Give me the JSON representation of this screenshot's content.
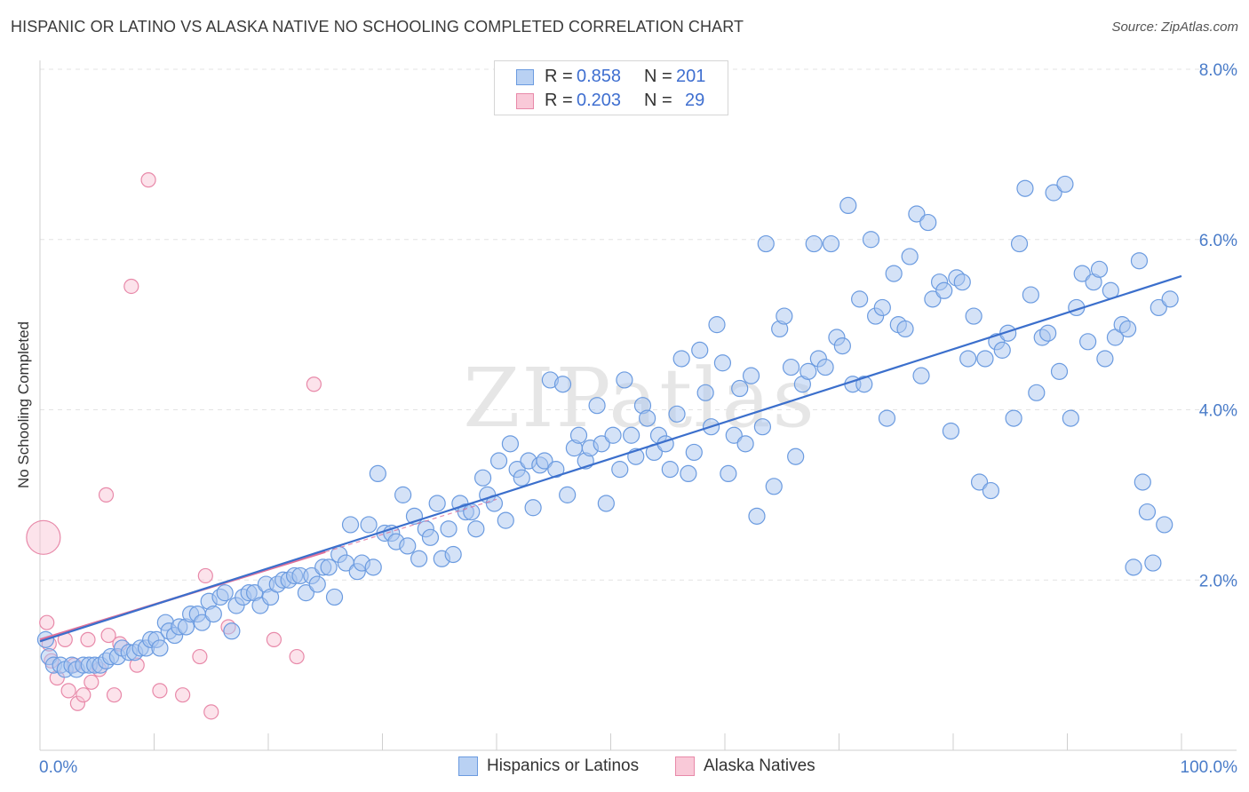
{
  "title": "HISPANIC OR LATINO VS ALASKA NATIVE NO SCHOOLING COMPLETED CORRELATION CHART",
  "source": "Source: ZipAtlas.com",
  "watermark": "ZIPatlas",
  "legend": {
    "rows": [
      {
        "r_label": "R =",
        "r_value": "0.858",
        "n_label": "N =",
        "n_value": "201"
      },
      {
        "r_label": "R =",
        "r_value": "0.203",
        "n_label": "N =",
        "n_value": "29"
      }
    ]
  },
  "bottom_legend": [
    "Hispanics or Latinos",
    "Alaska Natives"
  ],
  "colors": {
    "blue_fill": "#a9c6f0",
    "blue_stroke": "#6b9be0",
    "blue_line": "#3b6fcc",
    "pink_fill": "#f8c0d2",
    "pink_stroke": "#e889a9",
    "pink_line": "#e0729a",
    "tick_text": "#4a7cc9",
    "grid": "#e3e3e3"
  },
  "chart_data": {
    "type": "scatter",
    "title": "HISPANIC OR LATINO VS ALASKA NATIVE NO SCHOOLING COMPLETED CORRELATION CHART",
    "xlabel": "",
    "ylabel": "No Schooling Completed",
    "xlim": [
      0,
      100
    ],
    "ylim": [
      0,
      8
    ],
    "x_tick_labels": [
      "0.0%",
      "100.0%"
    ],
    "y_ticks": [
      2,
      4,
      6,
      8
    ],
    "y_tick_labels": [
      "2.0%",
      "4.0%",
      "6.0%",
      "8.0%"
    ],
    "grid": true,
    "legend_position": "top-center",
    "series": [
      {
        "name": "Hispanics or Latinos",
        "R": 0.858,
        "N": 201,
        "trend": [
          [
            0,
            1.28
          ],
          [
            100,
            5.57
          ]
        ],
        "points": [
          [
            0.5,
            1.3
          ],
          [
            0.8,
            1.1
          ],
          [
            1.2,
            1.0
          ],
          [
            1.8,
            1.0
          ],
          [
            2.2,
            0.95
          ],
          [
            2.8,
            1.0
          ],
          [
            3.2,
            0.95
          ],
          [
            3.8,
            1.0
          ],
          [
            4.3,
            1.0
          ],
          [
            4.8,
            1.0
          ],
          [
            5.3,
            1.0
          ],
          [
            5.8,
            1.05
          ],
          [
            6.2,
            1.1
          ],
          [
            6.8,
            1.1
          ],
          [
            7.2,
            1.2
          ],
          [
            7.8,
            1.15
          ],
          [
            8.3,
            1.15
          ],
          [
            8.8,
            1.2
          ],
          [
            9.3,
            1.2
          ],
          [
            9.7,
            1.3
          ],
          [
            10.2,
            1.3
          ],
          [
            10.5,
            1.2
          ],
          [
            11.0,
            1.5
          ],
          [
            11.3,
            1.4
          ],
          [
            11.8,
            1.35
          ],
          [
            12.2,
            1.45
          ],
          [
            12.8,
            1.45
          ],
          [
            13.2,
            1.6
          ],
          [
            13.8,
            1.6
          ],
          [
            14.2,
            1.5
          ],
          [
            14.8,
            1.75
          ],
          [
            15.2,
            1.6
          ],
          [
            15.8,
            1.8
          ],
          [
            16.2,
            1.85
          ],
          [
            16.8,
            1.4
          ],
          [
            17.2,
            1.7
          ],
          [
            17.8,
            1.8
          ],
          [
            18.3,
            1.85
          ],
          [
            18.8,
            1.85
          ],
          [
            19.3,
            1.7
          ],
          [
            19.8,
            1.95
          ],
          [
            20.2,
            1.8
          ],
          [
            20.8,
            1.95
          ],
          [
            21.3,
            2.0
          ],
          [
            21.8,
            2.0
          ],
          [
            22.3,
            2.05
          ],
          [
            22.8,
            2.05
          ],
          [
            23.3,
            1.85
          ],
          [
            23.8,
            2.05
          ],
          [
            24.3,
            1.95
          ],
          [
            24.8,
            2.15
          ],
          [
            25.3,
            2.15
          ],
          [
            25.8,
            1.8
          ],
          [
            26.2,
            2.3
          ],
          [
            26.8,
            2.2
          ],
          [
            27.2,
            2.65
          ],
          [
            27.8,
            2.1
          ],
          [
            28.2,
            2.2
          ],
          [
            28.8,
            2.65
          ],
          [
            29.2,
            2.15
          ],
          [
            29.6,
            3.25
          ],
          [
            30.2,
            2.55
          ],
          [
            30.8,
            2.55
          ],
          [
            31.2,
            2.45
          ],
          [
            31.8,
            3.0
          ],
          [
            32.2,
            2.4
          ],
          [
            32.8,
            2.75
          ],
          [
            33.2,
            2.25
          ],
          [
            33.8,
            2.6
          ],
          [
            34.2,
            2.5
          ],
          [
            34.8,
            2.9
          ],
          [
            35.2,
            2.25
          ],
          [
            35.8,
            2.6
          ],
          [
            36.2,
            2.3
          ],
          [
            36.8,
            2.9
          ],
          [
            37.3,
            2.8
          ],
          [
            37.8,
            2.8
          ],
          [
            38.2,
            2.6
          ],
          [
            38.8,
            3.2
          ],
          [
            39.2,
            3.0
          ],
          [
            39.8,
            2.9
          ],
          [
            40.2,
            3.4
          ],
          [
            40.8,
            2.7
          ],
          [
            41.2,
            3.6
          ],
          [
            41.8,
            3.3
          ],
          [
            42.2,
            3.2
          ],
          [
            42.8,
            3.4
          ],
          [
            43.2,
            2.85
          ],
          [
            43.8,
            3.35
          ],
          [
            44.2,
            3.4
          ],
          [
            44.7,
            4.35
          ],
          [
            45.2,
            3.3
          ],
          [
            45.8,
            4.3
          ],
          [
            46.2,
            3.0
          ],
          [
            46.8,
            3.55
          ],
          [
            47.2,
            3.7
          ],
          [
            47.8,
            3.4
          ],
          [
            48.2,
            3.55
          ],
          [
            48.8,
            4.05
          ],
          [
            49.2,
            3.6
          ],
          [
            49.6,
            2.9
          ],
          [
            50.2,
            3.7
          ],
          [
            50.8,
            3.3
          ],
          [
            51.2,
            4.35
          ],
          [
            51.8,
            3.7
          ],
          [
            52.2,
            3.45
          ],
          [
            52.8,
            4.05
          ],
          [
            53.2,
            3.9
          ],
          [
            53.8,
            3.5
          ],
          [
            54.2,
            3.7
          ],
          [
            54.8,
            3.6
          ],
          [
            55.2,
            3.3
          ],
          [
            55.8,
            3.95
          ],
          [
            56.2,
            4.6
          ],
          [
            56.8,
            3.25
          ],
          [
            57.3,
            3.5
          ],
          [
            57.8,
            4.7
          ],
          [
            58.3,
            4.2
          ],
          [
            58.8,
            3.8
          ],
          [
            59.3,
            5.0
          ],
          [
            59.8,
            4.55
          ],
          [
            60.3,
            3.25
          ],
          [
            60.8,
            3.7
          ],
          [
            61.3,
            4.25
          ],
          [
            61.8,
            3.6
          ],
          [
            62.3,
            4.4
          ],
          [
            62.8,
            2.75
          ],
          [
            63.3,
            3.8
          ],
          [
            63.6,
            5.95
          ],
          [
            64.3,
            3.1
          ],
          [
            64.8,
            4.95
          ],
          [
            65.2,
            5.1
          ],
          [
            65.8,
            4.5
          ],
          [
            66.2,
            3.45
          ],
          [
            66.8,
            4.3
          ],
          [
            67.3,
            4.45
          ],
          [
            67.8,
            5.95
          ],
          [
            68.2,
            4.6
          ],
          [
            68.8,
            4.5
          ],
          [
            69.3,
            5.95
          ],
          [
            69.8,
            4.85
          ],
          [
            70.3,
            4.75
          ],
          [
            70.8,
            6.4
          ],
          [
            71.2,
            4.3
          ],
          [
            71.8,
            5.3
          ],
          [
            72.2,
            4.3
          ],
          [
            72.8,
            6.0
          ],
          [
            73.2,
            5.1
          ],
          [
            73.8,
            5.2
          ],
          [
            74.2,
            3.9
          ],
          [
            74.8,
            5.6
          ],
          [
            75.2,
            5.0
          ],
          [
            75.8,
            4.95
          ],
          [
            76.2,
            5.8
          ],
          [
            76.8,
            6.3
          ],
          [
            77.2,
            4.4
          ],
          [
            77.8,
            6.2
          ],
          [
            78.2,
            5.3
          ],
          [
            78.8,
            5.5
          ],
          [
            79.2,
            5.4
          ],
          [
            79.8,
            3.75
          ],
          [
            80.3,
            5.55
          ],
          [
            80.8,
            5.5
          ],
          [
            81.3,
            4.6
          ],
          [
            81.8,
            5.1
          ],
          [
            82.3,
            3.15
          ],
          [
            82.8,
            4.6
          ],
          [
            83.3,
            3.05
          ],
          [
            83.8,
            4.8
          ],
          [
            84.3,
            4.7
          ],
          [
            84.8,
            4.9
          ],
          [
            85.3,
            3.9
          ],
          [
            85.8,
            5.95
          ],
          [
            86.3,
            6.6
          ],
          [
            86.8,
            5.35
          ],
          [
            87.3,
            4.2
          ],
          [
            87.8,
            4.85
          ],
          [
            88.3,
            4.9
          ],
          [
            88.8,
            6.55
          ],
          [
            89.3,
            4.45
          ],
          [
            89.8,
            6.65
          ],
          [
            90.3,
            3.9
          ],
          [
            90.8,
            5.2
          ],
          [
            91.3,
            5.6
          ],
          [
            91.8,
            4.8
          ],
          [
            92.3,
            5.5
          ],
          [
            92.8,
            5.65
          ],
          [
            93.3,
            4.6
          ],
          [
            93.8,
            5.4
          ],
          [
            94.2,
            4.85
          ],
          [
            94.8,
            5.0
          ],
          [
            95.3,
            4.95
          ],
          [
            95.8,
            2.15
          ],
          [
            96.3,
            5.75
          ],
          [
            96.6,
            3.15
          ],
          [
            97.0,
            2.8
          ],
          [
            97.5,
            2.2
          ],
          [
            98.0,
            5.2
          ],
          [
            98.5,
            2.65
          ],
          [
            99.0,
            5.3
          ]
        ]
      },
      {
        "name": "Alaska Natives",
        "R": 0.203,
        "N": 29,
        "trend": [
          [
            0,
            1.3
          ],
          [
            25,
            2.33
          ]
        ],
        "points": [
          [
            0.3,
            2.5
          ],
          [
            0.6,
            1.5
          ],
          [
            0.8,
            1.25
          ],
          [
            1.0,
            1.05
          ],
          [
            1.5,
            0.85
          ],
          [
            2.2,
            1.3
          ],
          [
            2.5,
            0.7
          ],
          [
            3.0,
            1.0
          ],
          [
            3.3,
            0.55
          ],
          [
            3.8,
            0.65
          ],
          [
            4.2,
            1.3
          ],
          [
            4.5,
            0.8
          ],
          [
            5.2,
            0.95
          ],
          [
            5.8,
            3.0
          ],
          [
            6.0,
            1.35
          ],
          [
            6.5,
            0.65
          ],
          [
            7.0,
            1.25
          ],
          [
            8.0,
            5.45
          ],
          [
            8.5,
            1.0
          ],
          [
            9.5,
            6.7
          ],
          [
            10.5,
            0.7
          ],
          [
            12.5,
            0.65
          ],
          [
            14.0,
            1.1
          ],
          [
            14.5,
            2.05
          ],
          [
            15.0,
            0.45
          ],
          [
            16.5,
            1.45
          ],
          [
            20.5,
            1.3
          ],
          [
            22.5,
            1.1
          ],
          [
            24.0,
            4.3
          ]
        ]
      }
    ]
  }
}
